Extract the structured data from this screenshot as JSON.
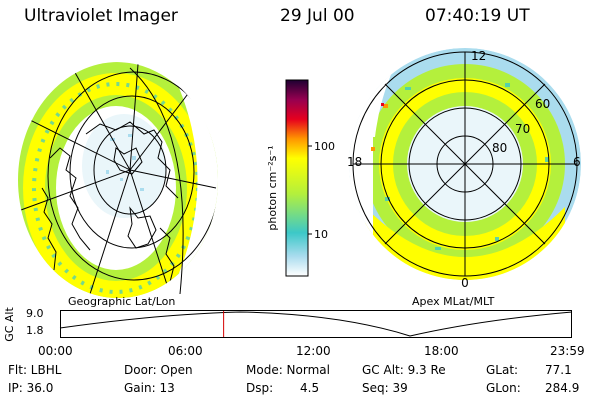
{
  "header": {
    "title": "Ultraviolet Imager",
    "date": "29 Jul 00",
    "time": "07:40:19 UT"
  },
  "left_panel": {
    "caption": "Geographic Lat/Lon"
  },
  "right_panel": {
    "caption": "Apex MLat/MLT",
    "mlt_labels": {
      "top": "12",
      "left": "18",
      "right": "6",
      "bottom": "0"
    },
    "lat_labels": [
      "60",
      "70",
      "80"
    ]
  },
  "colorbar": {
    "unit_label": "photon cm⁻²s⁻¹",
    "ticks": [
      "100",
      "10"
    ],
    "scale": "log",
    "colors": [
      "#ffffff",
      "#aadcee",
      "#3cc8c8",
      "#b4f03c",
      "#ffff00",
      "#ff9600",
      "#e6001e",
      "#960050",
      "#1e0032"
    ]
  },
  "timeline": {
    "ylabel": "GC Alt",
    "yticks": [
      "9.0",
      "1.8"
    ],
    "xticks": [
      "00:00",
      "06:00",
      "12:00",
      "18:00",
      "23:59"
    ],
    "marker_time_hours": 7.67,
    "marker_color": "#d40000"
  },
  "info": {
    "row1": {
      "flt": "Flt: LBHL",
      "door": "Door: Open",
      "mode": "Mode: Normal",
      "gcalt": "GC Alt: 9.3 Re",
      "glat_label": "GLat:",
      "glat_value": "77.1"
    },
    "row2": {
      "ip": "IP: 36.0",
      "gain": "Gain: 13",
      "dsp_label": "Dsp:",
      "dsp_value": "4.5",
      "seq": "Seq: 39",
      "glon_label": "GLon:",
      "glon_value": "284.9"
    }
  }
}
